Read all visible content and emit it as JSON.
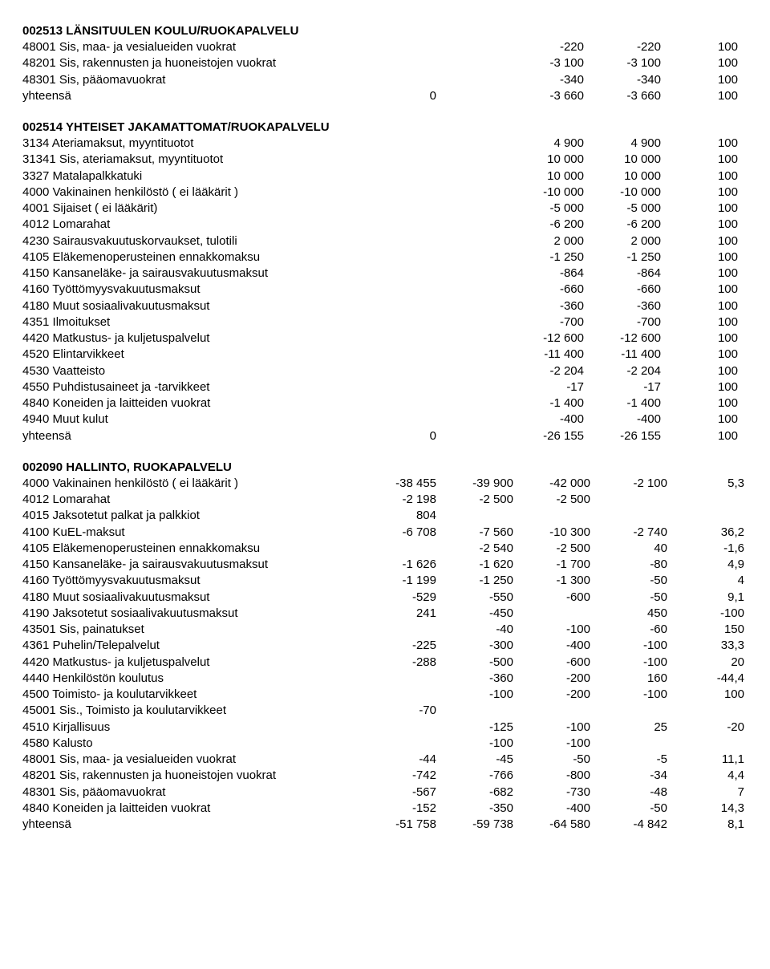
{
  "section1": {
    "title": "002513 LÄNSITUULEN KOULU/RUOKAPALVELU",
    "rows": [
      {
        "label": "48001 Sis, maa- ja vesialueiden vuokrat",
        "c": [
          "-220",
          "-220",
          "100"
        ]
      },
      {
        "label": "48201 Sis, rakennusten ja huoneistojen vuokrat",
        "c": [
          "-3 100",
          "-3 100",
          "100"
        ]
      },
      {
        "label": "48301 Sis, pääomavuokrat",
        "c": [
          "-340",
          "-340",
          "100"
        ]
      },
      {
        "label": "yhteensä",
        "first": "0",
        "c": [
          "-3 660",
          "-3 660",
          "100"
        ]
      }
    ]
  },
  "section2": {
    "title": "002514 YHTEISET JAKAMATTOMAT/RUOKAPALVELU",
    "rows": [
      {
        "label": "3134 Ateriamaksut, myyntituotot",
        "c": [
          "4 900",
          "4 900",
          "100"
        ]
      },
      {
        "label": "31341 Sis, ateriamaksut, myyntituotot",
        "c": [
          "10 000",
          "10 000",
          "100"
        ]
      },
      {
        "label": "3327 Matalapalkkatuki",
        "c": [
          "10 000",
          "10 000",
          "100"
        ]
      },
      {
        "label": "4000 Vakinainen henkilöstö ( ei lääkärit )",
        "c": [
          "-10 000",
          "-10 000",
          "100"
        ]
      },
      {
        "label": "4001 Sijaiset ( ei lääkärit)",
        "c": [
          "-5 000",
          "-5 000",
          "100"
        ]
      },
      {
        "label": "4012 Lomarahat",
        "c": [
          "-6 200",
          "-6 200",
          "100"
        ]
      },
      {
        "label": "4230 Sairausvakuutuskorvaukset, tulotili",
        "c": [
          "2 000",
          "2 000",
          "100"
        ]
      },
      {
        "label": "4105 Eläkemenoperusteinen ennakkomaksu",
        "c": [
          "-1 250",
          "-1 250",
          "100"
        ]
      },
      {
        "label": "4150 Kansaneläke- ja sairausvakuutusmaksut",
        "c": [
          "-864",
          "-864",
          "100"
        ]
      },
      {
        "label": "4160 Työttömyysvakuutusmaksut",
        "c": [
          "-660",
          "-660",
          "100"
        ]
      },
      {
        "label": "4180 Muut sosiaalivakuutusmaksut",
        "c": [
          "-360",
          "-360",
          "100"
        ]
      },
      {
        "label": "4351 Ilmoitukset",
        "c": [
          "-700",
          "-700",
          "100"
        ]
      },
      {
        "label": "4420 Matkustus- ja kuljetuspalvelut",
        "c": [
          "-12 600",
          "-12 600",
          "100"
        ]
      },
      {
        "label": "4520 Elintarvikkeet",
        "c": [
          "-11 400",
          "-11 400",
          "100"
        ]
      },
      {
        "label": "4530 Vaatteisto",
        "c": [
          "-2 204",
          "-2 204",
          "100"
        ]
      },
      {
        "label": "4550 Puhdistusaineet ja -tarvikkeet",
        "c": [
          "-17",
          "-17",
          "100"
        ]
      },
      {
        "label": "4840 Koneiden ja laitteiden vuokrat",
        "c": [
          "-1 400",
          "-1 400",
          "100"
        ]
      },
      {
        "label": "4940 Muut kulut",
        "c": [
          "-400",
          "-400",
          "100"
        ]
      },
      {
        "label": "yhteensä",
        "first": "0",
        "c": [
          "-26 155",
          "-26 155",
          "100"
        ]
      }
    ]
  },
  "section3": {
    "title": "002090 HALLINTO, RUOKAPALVELU",
    "rows": [
      {
        "label": "4000 Vakinainen henkilöstö ( ei lääkärit )",
        "c": [
          "-38 455",
          "-39 900",
          "-42 000",
          "-2 100",
          "5,3"
        ]
      },
      {
        "label": "4012 Lomarahat",
        "c": [
          "-2 198",
          "-2 500",
          "-2 500",
          "",
          ""
        ]
      },
      {
        "label": "4015 Jaksotetut palkat ja palkkiot",
        "c": [
          "804",
          "",
          "",
          "",
          ""
        ]
      },
      {
        "label": "4100 KuEL-maksut",
        "c": [
          "-6 708",
          "-7 560",
          "-10 300",
          "-2 740",
          "36,2"
        ]
      },
      {
        "label": "4105 Eläkemenoperusteinen ennakkomaksu",
        "c": [
          "",
          "-2 540",
          "-2 500",
          "40",
          "-1,6"
        ]
      },
      {
        "label": "4150 Kansaneläke- ja sairausvakuutusmaksut",
        "c": [
          "-1 626",
          "-1 620",
          "-1 700",
          "-80",
          "4,9"
        ]
      },
      {
        "label": "4160 Työttömyysvakuutusmaksut",
        "c": [
          "-1 199",
          "-1 250",
          "-1 300",
          "-50",
          "4"
        ]
      },
      {
        "label": "4180 Muut sosiaalivakuutusmaksut",
        "c": [
          "-529",
          "-550",
          "-600",
          "-50",
          "9,1"
        ]
      },
      {
        "label": "4190 Jaksotetut sosiaalivakuutusmaksut",
        "c": [
          "241",
          "-450",
          "",
          "450",
          "-100"
        ]
      },
      {
        "label": "43501 Sis, painatukset",
        "c": [
          "",
          "-40",
          "-100",
          "-60",
          "150"
        ]
      },
      {
        "label": "4361 Puhelin/Telepalvelut",
        "c": [
          "-225",
          "-300",
          "-400",
          "-100",
          "33,3"
        ]
      },
      {
        "label": "4420 Matkustus- ja kuljetuspalvelut",
        "c": [
          "-288",
          "-500",
          "-600",
          "-100",
          "20"
        ]
      },
      {
        "label": "4440 Henkilöstön koulutus",
        "c": [
          "",
          "-360",
          "-200",
          "160",
          "-44,4"
        ]
      },
      {
        "label": "4500 Toimisto- ja koulutarvikkeet",
        "c": [
          "",
          "-100",
          "-200",
          "-100",
          "100"
        ]
      },
      {
        "label": "45001 Sis., Toimisto ja koulutarvikkeet",
        "c": [
          "-70",
          "",
          "",
          "",
          ""
        ]
      },
      {
        "label": "4510 Kirjallisuus",
        "c": [
          "",
          "-125",
          "-100",
          "25",
          "-20"
        ]
      },
      {
        "label": "4580 Kalusto",
        "c": [
          "",
          "-100",
          "-100",
          "",
          ""
        ]
      },
      {
        "label": "48001 Sis, maa- ja vesialueiden vuokrat",
        "c": [
          "-44",
          "-45",
          "-50",
          "-5",
          "11,1"
        ]
      },
      {
        "label": "48201 Sis, rakennusten ja huoneistojen vuokrat",
        "c": [
          "-742",
          "-766",
          "-800",
          "-34",
          "4,4"
        ]
      },
      {
        "label": "48301 Sis, pääomavuokrat",
        "c": [
          "-567",
          "-682",
          "-730",
          "-48",
          "7"
        ]
      },
      {
        "label": "4840 Koneiden ja laitteiden vuokrat",
        "c": [
          "-152",
          "-350",
          "-400",
          "-50",
          "14,3"
        ]
      },
      {
        "label": "yhteensä",
        "c": [
          "-51 758",
          "-59 738",
          "-64 580",
          "-4 842",
          "8,1"
        ]
      }
    ]
  }
}
